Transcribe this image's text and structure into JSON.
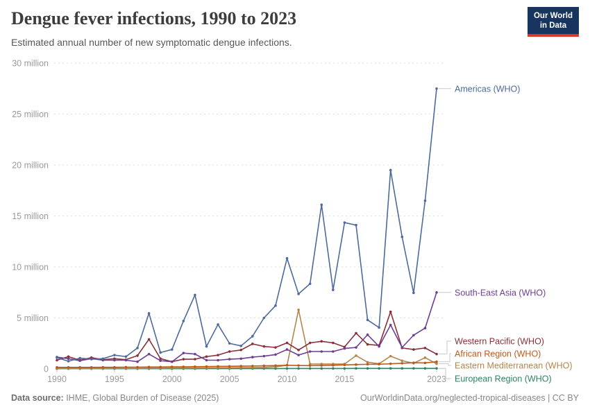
{
  "header": {
    "title": "Dengue fever infections, 1990 to 2023",
    "subtitle": "Estimated annual number of new symptomatic dengue infections.",
    "logo_line1": "Our World",
    "logo_line2": "in Data"
  },
  "footer": {
    "source_label": "Data source:",
    "source_value": " IHME, Global Burden of Disease (2025)",
    "url": "OurWorldinData.org/neglected-tropical-diseases",
    "separator": " | ",
    "license": "CC BY"
  },
  "chart_data": {
    "type": "line",
    "title": "Dengue fever infections, 1990 to 2023",
    "subtitle": "Estimated annual number of new symptomatic dengue infections.",
    "unit": "million infections per year",
    "xlabel": "",
    "ylabel": "",
    "ylim": [
      0,
      30
    ],
    "grid": "horizontal-dashed",
    "legend_position": "right-of-line-ends",
    "x": [
      1990,
      1991,
      1992,
      1993,
      1994,
      1995,
      1996,
      1997,
      1998,
      1999,
      2000,
      2001,
      2002,
      2003,
      2004,
      2005,
      2006,
      2007,
      2008,
      2009,
      2010,
      2011,
      2012,
      2013,
      2014,
      2015,
      2016,
      2017,
      2018,
      2019,
      2020,
      2021,
      2022,
      2023
    ],
    "x_ticks": [
      1990,
      1995,
      2000,
      2005,
      2010,
      2015,
      2023
    ],
    "y_ticks": [
      {
        "value": 0,
        "label": "0"
      },
      {
        "value": 5,
        "label": "5 million"
      },
      {
        "value": 10,
        "label": "10 million"
      },
      {
        "value": 15,
        "label": "15 million"
      },
      {
        "value": 20,
        "label": "20 million"
      },
      {
        "value": 25,
        "label": "25 million"
      },
      {
        "value": 30,
        "label": "30 million"
      }
    ],
    "series": [
      {
        "id": "americas-who",
        "name": "Americas (WHO)",
        "color": "#4C6A9C",
        "values": [
          1.1,
          0.75,
          1.05,
          0.95,
          1.0,
          1.35,
          1.2,
          2.05,
          5.45,
          1.6,
          1.9,
          4.7,
          7.25,
          2.2,
          4.35,
          2.5,
          2.25,
          3.2,
          5.0,
          6.2,
          10.85,
          7.35,
          8.35,
          16.1,
          7.75,
          14.35,
          14.1,
          4.8,
          4.05,
          19.5,
          12.95,
          7.45,
          16.5,
          27.5
        ]
      },
      {
        "id": "south-east-asia-who",
        "name": "South-East Asia (WHO)",
        "color": "#6D3E91",
        "values": [
          1.15,
          1.0,
          0.8,
          1.0,
          0.85,
          0.85,
          0.85,
          0.7,
          1.45,
          0.8,
          0.7,
          1.55,
          1.45,
          0.85,
          0.85,
          0.95,
          1.0,
          1.15,
          1.25,
          1.4,
          1.9,
          1.35,
          1.7,
          1.7,
          1.7,
          2.0,
          2.1,
          3.35,
          2.2,
          4.3,
          2.1,
          3.3,
          4.0,
          7.5
        ]
      },
      {
        "id": "western-pacific-who",
        "name": "Western Pacific (WHO)",
        "color": "#883039",
        "values": [
          0.85,
          1.2,
          0.85,
          1.1,
          0.9,
          1.0,
          0.9,
          1.3,
          2.9,
          1.0,
          0.7,
          0.95,
          0.95,
          1.2,
          1.35,
          1.7,
          1.85,
          2.45,
          2.2,
          2.1,
          2.55,
          1.85,
          2.55,
          2.7,
          2.55,
          2.15,
          3.5,
          2.4,
          2.3,
          5.6,
          2.05,
          1.9,
          2.05,
          1.45
        ]
      },
      {
        "id": "african-region-who",
        "name": "African Region (WHO)",
        "color": "#C05917",
        "values": [
          0.15,
          0.15,
          0.15,
          0.15,
          0.16,
          0.16,
          0.17,
          0.17,
          0.18,
          0.18,
          0.2,
          0.2,
          0.22,
          0.23,
          0.24,
          0.25,
          0.27,
          0.28,
          0.3,
          0.32,
          0.35,
          0.33,
          0.32,
          0.33,
          0.35,
          0.39,
          0.42,
          0.45,
          0.45,
          0.5,
          0.55,
          0.6,
          0.58,
          0.7
        ]
      },
      {
        "id": "eastern-mediterranean-who",
        "name": "Eastern Mediterranean (WHO)",
        "color": "#B3854A",
        "values": [
          0.05,
          0.05,
          0.05,
          0.05,
          0.05,
          0.06,
          0.06,
          0.06,
          0.07,
          0.07,
          0.08,
          0.08,
          0.09,
          0.1,
          0.1,
          0.11,
          0.12,
          0.13,
          0.15,
          0.2,
          0.35,
          5.8,
          0.48,
          0.47,
          0.47,
          0.47,
          1.3,
          0.65,
          0.5,
          1.25,
          0.8,
          0.55,
          1.1,
          0.5
        ]
      },
      {
        "id": "european-region-who",
        "name": "European Region (WHO)",
        "color": "#2C8465",
        "values": [
          0.02,
          0.02,
          0.02,
          0.02,
          0.02,
          0.02,
          0.02,
          0.02,
          0.02,
          0.02,
          0.02,
          0.02,
          0.02,
          0.03,
          0.03,
          0.03,
          0.03,
          0.03,
          0.03,
          0.03,
          0.04,
          0.04,
          0.04,
          0.04,
          0.04,
          0.04,
          0.05,
          0.05,
          0.05,
          0.05,
          0.05,
          0.05,
          0.05,
          0.05
        ]
      }
    ]
  }
}
